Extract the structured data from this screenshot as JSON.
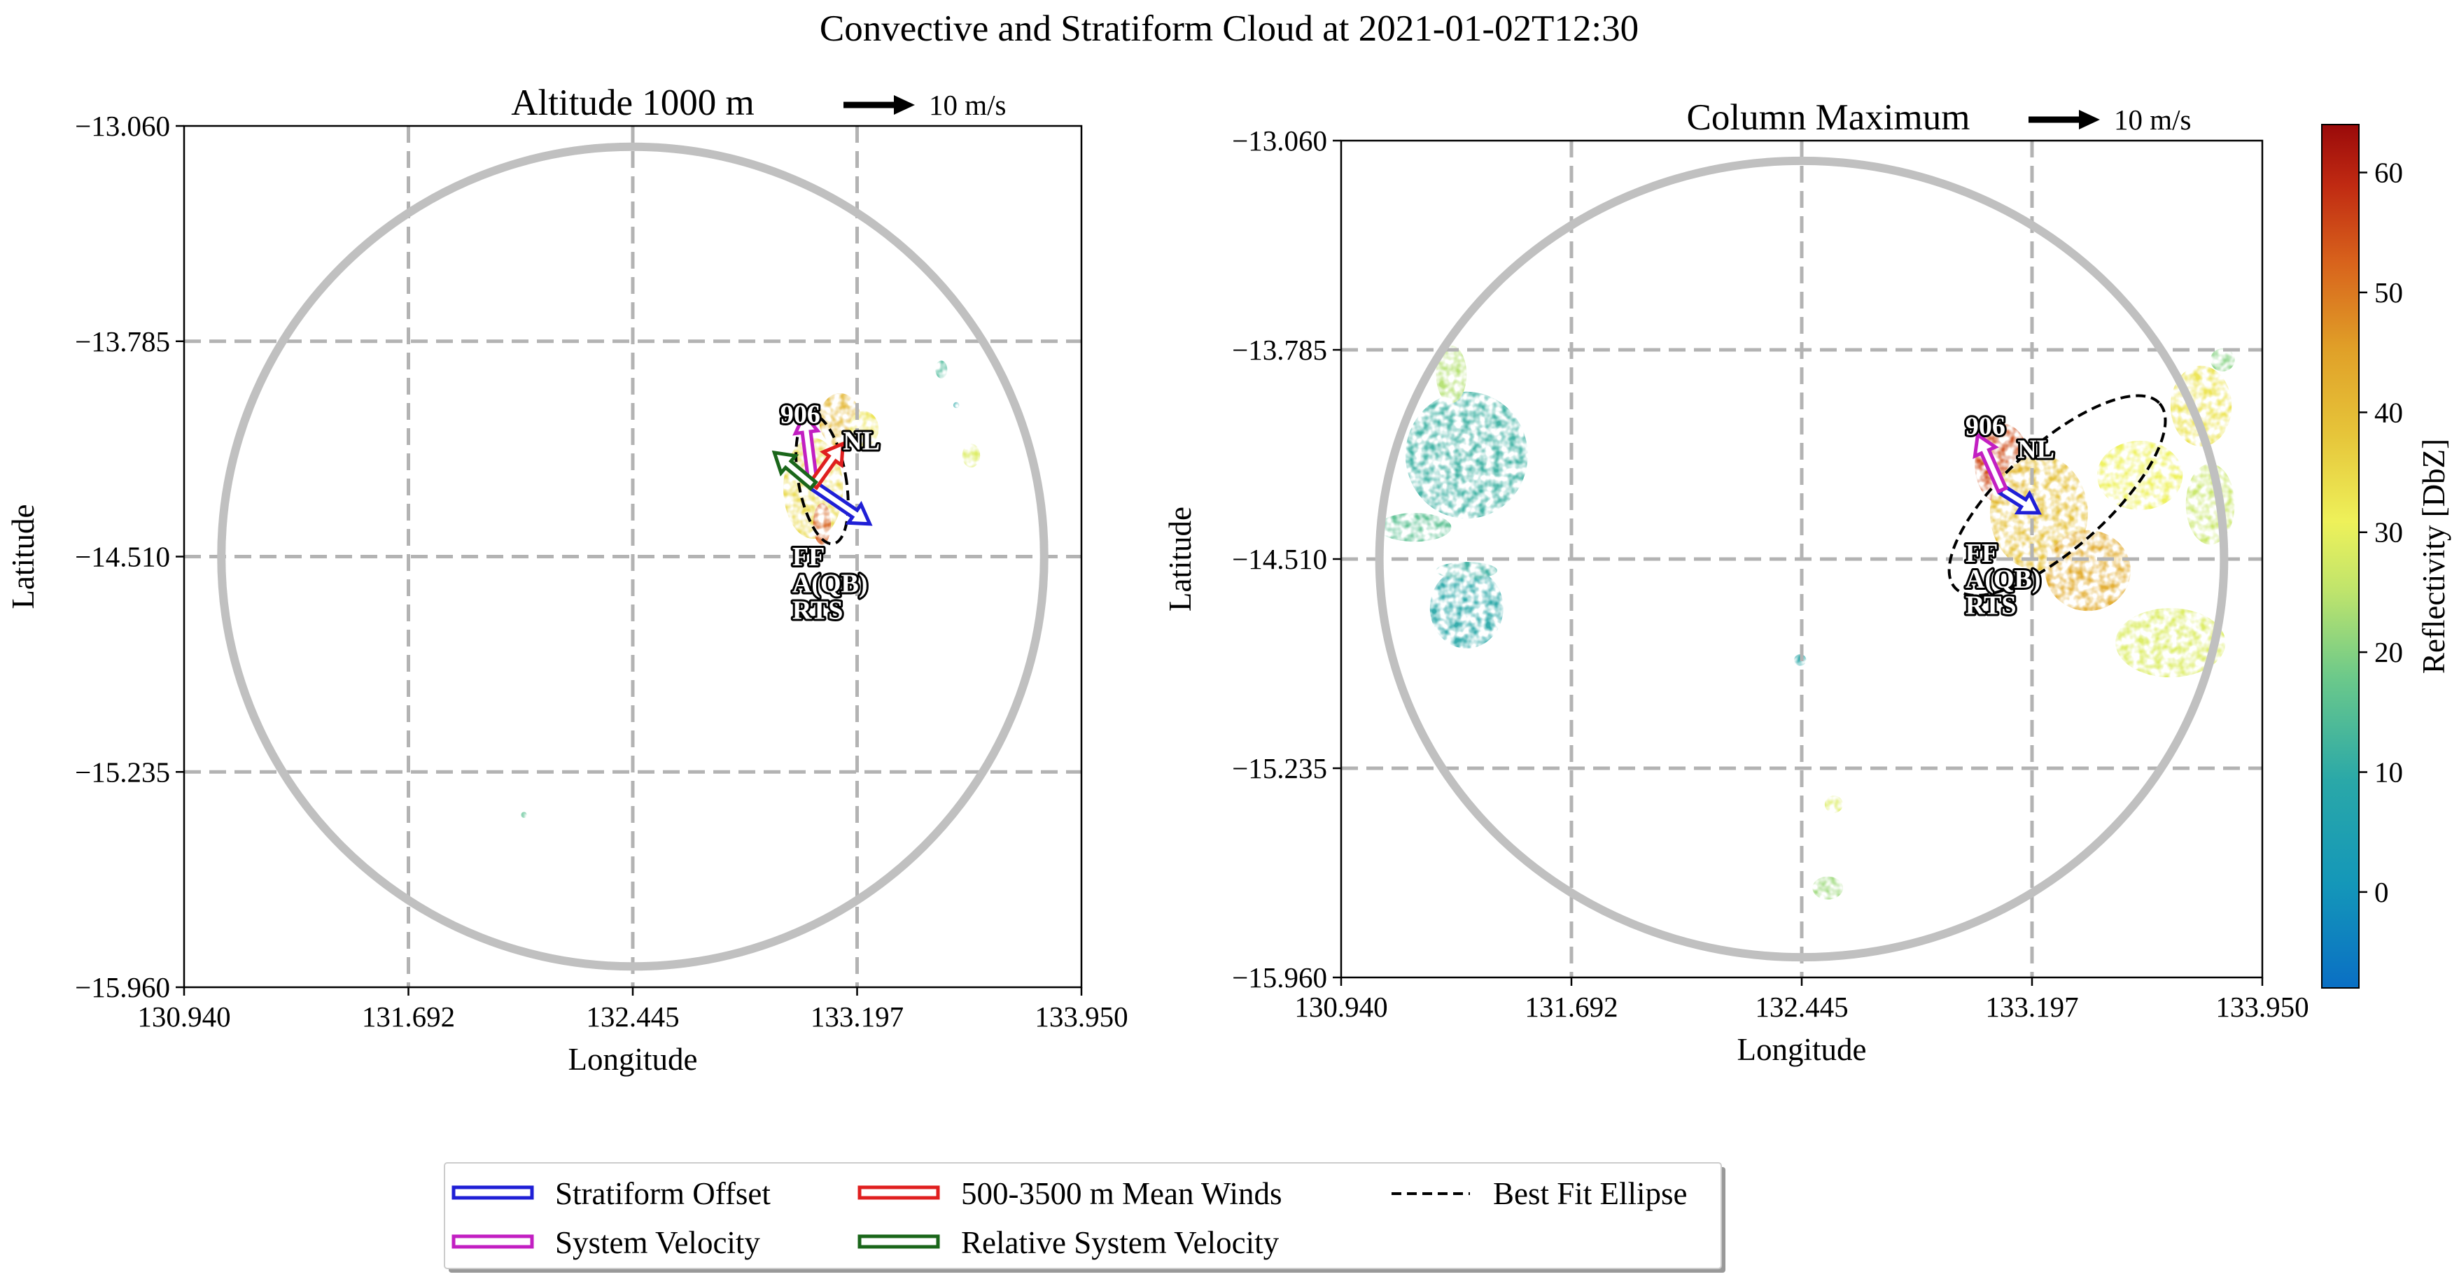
{
  "figure": {
    "suptitle": "Convective and Stratiform Cloud at 2021-01-02T12:30"
  },
  "colors": {
    "stratiform_offset": "#1f1fd6",
    "system_velocity": "#c21fc2",
    "mean_winds": "#e01f1f",
    "relative_system_velocity": "#1a661a",
    "ellipse": "#000000",
    "grid": "#b3b3b3",
    "range_ring": "#c0c0c0"
  },
  "legend": {
    "entries": [
      {
        "label": "Stratiform Offset",
        "style": "box",
        "color": "#1f1fd6"
      },
      {
        "label": "System Velocity",
        "style": "box",
        "color": "#c21fc2"
      },
      {
        "label": "500-3500 m Mean Winds",
        "style": "box",
        "color": "#e01f1f"
      },
      {
        "label": "Relative System Velocity",
        "style": "box",
        "color": "#1a661a"
      },
      {
        "label": "Best Fit Ellipse",
        "style": "dashed",
        "color": "#000000"
      }
    ]
  },
  "colorbar": {
    "label": "Reflectivity [DbZ]",
    "min": -8,
    "max": 64,
    "ticks": [
      "0",
      "10",
      "20",
      "30",
      "40",
      "50",
      "60"
    ],
    "colormap": "HomeyerRainbow"
  },
  "chart_data": [
    {
      "type": "heatmap",
      "title": "Altitude 1000 m",
      "xlabel": "Longitude",
      "ylabel": "Latitude",
      "xlim": [
        130.94,
        133.95
      ],
      "ylim": [
        -15.96,
        -13.06
      ],
      "xticks": [
        "130.940",
        "131.692",
        "132.445",
        "133.197",
        "133.950"
      ],
      "yticks": [
        "−13.060",
        "−13.785",
        "−14.510",
        "−15.235",
        "−15.960"
      ],
      "grid": true,
      "quiver_key": "10 m/s",
      "range_ring": {
        "center": [
          132.445,
          -14.51
        ],
        "radius_deg": 1.38
      },
      "echoes": [
        {
          "lon": 133.05,
          "lat": -14.28,
          "rlon": 0.1,
          "rlat": 0.17,
          "dbz": 32
        },
        {
          "lon": 133.14,
          "lat": -14.05,
          "rlon": 0.07,
          "rlat": 0.09,
          "dbz": 38
        },
        {
          "lon": 133.22,
          "lat": -14.08,
          "rlon": 0.05,
          "rlat": 0.06,
          "dbz": 30
        },
        {
          "lon": 133.08,
          "lat": -14.4,
          "rlon": 0.03,
          "rlat": 0.07,
          "dbz": 50
        },
        {
          "lon": 133.58,
          "lat": -14.17,
          "rlon": 0.03,
          "rlat": 0.04,
          "dbz": 26
        },
        {
          "lon": 133.48,
          "lat": -13.88,
          "rlon": 0.02,
          "rlat": 0.03,
          "dbz": 12
        },
        {
          "lon": 133.53,
          "lat": -14.0,
          "rlon": 0.01,
          "rlat": 0.01,
          "dbz": 8
        },
        {
          "lon": 132.08,
          "lat": -15.38,
          "rlon": 0.01,
          "rlat": 0.01,
          "dbz": 14
        }
      ],
      "vectors": [
        {
          "series": "Stratiform Offset",
          "from": [
            133.05,
            -14.27
          ],
          "to": [
            133.24,
            -14.4
          ]
        },
        {
          "series": "System Velocity",
          "from": [
            133.05,
            -14.27
          ],
          "to": [
            133.02,
            -14.03
          ]
        },
        {
          "series": "500-3500 m Mean Winds",
          "from": [
            133.05,
            -14.27
          ],
          "to": [
            133.15,
            -14.13
          ]
        },
        {
          "series": "Relative System Velocity",
          "from": [
            133.05,
            -14.27
          ],
          "to": [
            132.92,
            -14.16
          ]
        }
      ],
      "ellipse": {
        "center": [
          133.08,
          -14.25
        ],
        "rx_deg": 0.08,
        "ry_deg": 0.22,
        "angle_deg": -10
      },
      "annotations": [
        {
          "text": "906",
          "lon": 132.94,
          "lat": -14.06
        },
        {
          "text": "NL",
          "lon": 133.15,
          "lat": -14.15
        },
        {
          "text": "FF",
          "lon": 132.98,
          "lat": -14.54
        },
        {
          "text": "A(QB)",
          "lon": 132.98,
          "lat": -14.63
        },
        {
          "text": "RTS",
          "lon": 132.98,
          "lat": -14.72
        }
      ]
    },
    {
      "type": "heatmap",
      "title": "Column Maximum",
      "xlabel": "Longitude",
      "ylabel": "Latitude",
      "xlim": [
        130.94,
        133.95
      ],
      "ylim": [
        -15.96,
        -13.06
      ],
      "xticks": [
        "130.940",
        "131.692",
        "132.445",
        "133.197",
        "133.950"
      ],
      "yticks": [
        "−13.060",
        "−13.785",
        "−14.510",
        "−15.235",
        "−15.960"
      ],
      "grid": true,
      "quiver_key": "10 m/s",
      "range_ring": {
        "center": [
          132.445,
          -14.51
        ],
        "radius_deg": 1.38
      },
      "echoes": [
        {
          "lon": 131.35,
          "lat": -14.15,
          "rlon": 0.2,
          "rlat": 0.22,
          "dbz": 10
        },
        {
          "lon": 131.3,
          "lat": -13.87,
          "rlon": 0.05,
          "rlat": 0.1,
          "dbz": 22
        },
        {
          "lon": 131.18,
          "lat": -14.4,
          "rlon": 0.12,
          "rlat": 0.05,
          "dbz": 14
        },
        {
          "lon": 131.35,
          "lat": -14.68,
          "rlon": 0.12,
          "rlat": 0.14,
          "dbz": 8
        },
        {
          "lon": 131.35,
          "lat": -14.55,
          "rlon": 0.1,
          "rlat": 0.03,
          "dbz": 10
        },
        {
          "lon": 133.1,
          "lat": -14.18,
          "rlon": 0.09,
          "rlat": 0.14,
          "dbz": 52
        },
        {
          "lon": 133.22,
          "lat": -14.35,
          "rlon": 0.16,
          "rlat": 0.2,
          "dbz": 36
        },
        {
          "lon": 133.38,
          "lat": -14.55,
          "rlon": 0.14,
          "rlat": 0.14,
          "dbz": 40
        },
        {
          "lon": 133.55,
          "lat": -14.22,
          "rlon": 0.14,
          "rlat": 0.12,
          "dbz": 28
        },
        {
          "lon": 133.75,
          "lat": -13.98,
          "rlon": 0.1,
          "rlat": 0.14,
          "dbz": 30
        },
        {
          "lon": 133.78,
          "lat": -14.32,
          "rlon": 0.08,
          "rlat": 0.14,
          "dbz": 24
        },
        {
          "lon": 133.65,
          "lat": -14.8,
          "rlon": 0.18,
          "rlat": 0.12,
          "dbz": 26
        },
        {
          "lon": 132.55,
          "lat": -15.36,
          "rlon": 0.03,
          "rlat": 0.03,
          "dbz": 26
        },
        {
          "lon": 132.53,
          "lat": -15.65,
          "rlon": 0.05,
          "rlat": 0.04,
          "dbz": 20
        },
        {
          "lon": 132.44,
          "lat": -14.86,
          "rlon": 0.02,
          "rlat": 0.02,
          "dbz": 8
        },
        {
          "lon": 133.82,
          "lat": -13.82,
          "rlon": 0.04,
          "rlat": 0.04,
          "dbz": 18
        }
      ],
      "vectors": [
        {
          "series": "Stratiform Offset",
          "from": [
            133.1,
            -14.27
          ],
          "to": [
            133.22,
            -14.35
          ]
        },
        {
          "series": "System Velocity",
          "from": [
            133.1,
            -14.27
          ],
          "to": [
            133.02,
            -14.08
          ]
        }
      ],
      "ellipse": {
        "center": [
          133.28,
          -14.29
        ],
        "rx_deg": 0.45,
        "ry_deg": 0.18,
        "angle_deg": -42
      },
      "annotations": [
        {
          "text": "906",
          "lon": 132.98,
          "lat": -14.08
        },
        {
          "text": "NL",
          "lon": 133.15,
          "lat": -14.16
        },
        {
          "text": "FF",
          "lon": 132.98,
          "lat": -14.52
        },
        {
          "text": "A(QB)",
          "lon": 132.98,
          "lat": -14.61
        },
        {
          "text": "RTS",
          "lon": 132.98,
          "lat": -14.7
        }
      ]
    }
  ]
}
